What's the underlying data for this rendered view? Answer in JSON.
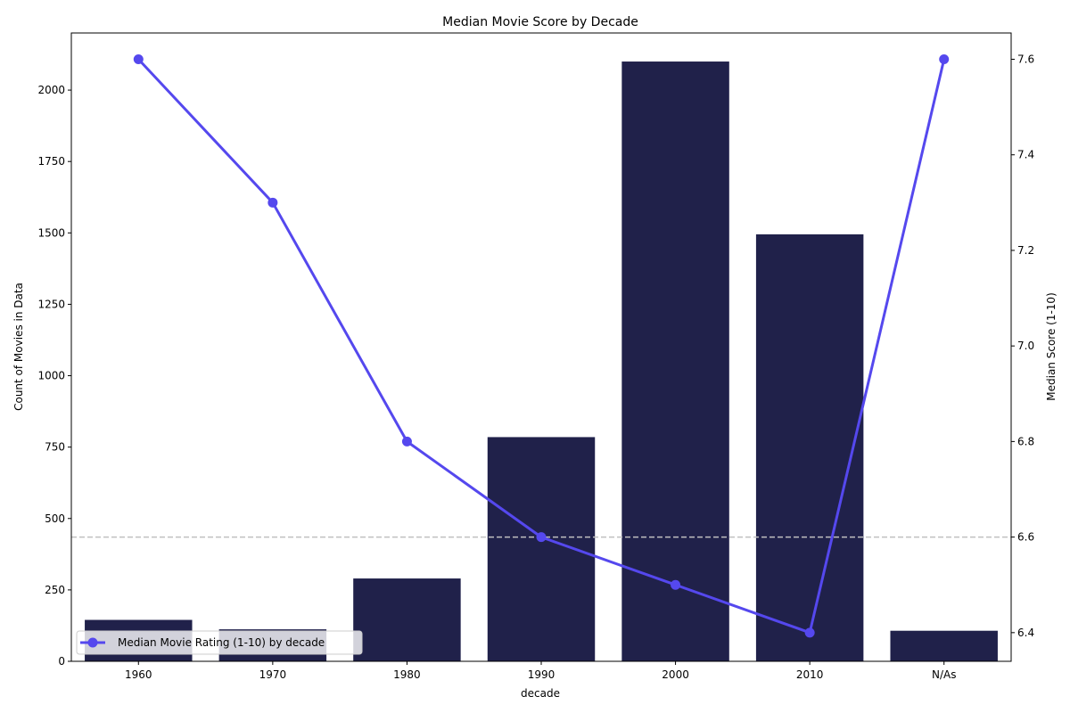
{
  "chart_data": {
    "type": "bar",
    "title": "Median Movie Score by Decade",
    "xlabel": "decade",
    "ylabel": "Count of Movies in Data",
    "ylabel_right": "Median Score (1-10)",
    "categories": [
      "1960",
      "1970",
      "1980",
      "1990",
      "2000",
      "2010",
      "N/As"
    ],
    "series": [
      {
        "type": "bar",
        "axis": "left",
        "values": [
          145,
          112,
          290,
          785,
          2100,
          1495,
          107
        ]
      },
      {
        "type": "line",
        "axis": "right",
        "name": "Median Movie Rating (1-10) by decade",
        "values": [
          7.6,
          7.3,
          6.8,
          6.6,
          6.5,
          6.4,
          7.6
        ]
      }
    ],
    "ylim": [
      0,
      2200
    ],
    "ylim_right": [
      6.34,
      7.655
    ],
    "yticks": [
      0,
      250,
      500,
      750,
      1000,
      1250,
      1500,
      1750,
      2000
    ],
    "yticks_right": [
      6.4,
      6.6,
      6.8,
      7.0,
      7.2,
      7.4,
      7.6
    ],
    "reference_line": {
      "axis": "right",
      "value": 6.6,
      "style": "dashed"
    },
    "grid": false,
    "legend_position": "lower-left",
    "colors": {
      "bar": "#20214a",
      "line": "#5548ee",
      "reference": "#c0c0c0"
    }
  }
}
